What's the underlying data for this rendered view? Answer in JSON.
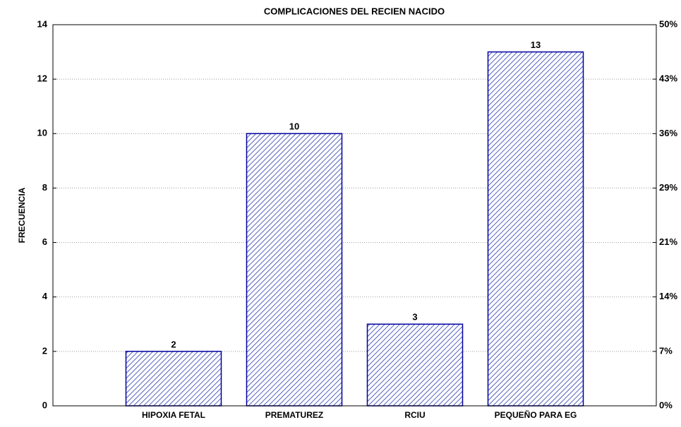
{
  "chart_data": {
    "type": "bar",
    "title": "COMPLICACIONES DEL RECIEN NACIDO",
    "ylabel": "FRECUENCIA",
    "categories": [
      "HIPOXIA FETAL",
      "PREMATUREZ",
      "RCIU",
      "PEQUEÑO PARA EG"
    ],
    "values": [
      2,
      10,
      3,
      13
    ],
    "color": "#0000a0",
    "ylim": [
      0,
      14
    ],
    "yticks": [
      0,
      2,
      4,
      6,
      8,
      10,
      12,
      14
    ],
    "y2lim": [
      0,
      50
    ],
    "y2ticks": [
      {
        "value": 0,
        "label": "0%"
      },
      {
        "value": 7.14,
        "label": "7%"
      },
      {
        "value": 14.29,
        "label": "14%"
      },
      {
        "value": 21.43,
        "label": "21%"
      },
      {
        "value": 28.57,
        "label": "29%"
      },
      {
        "value": 35.71,
        "label": "36%"
      },
      {
        "value": 42.86,
        "label": "43%"
      },
      {
        "value": 50,
        "label": "50%"
      }
    ],
    "grid": true
  }
}
